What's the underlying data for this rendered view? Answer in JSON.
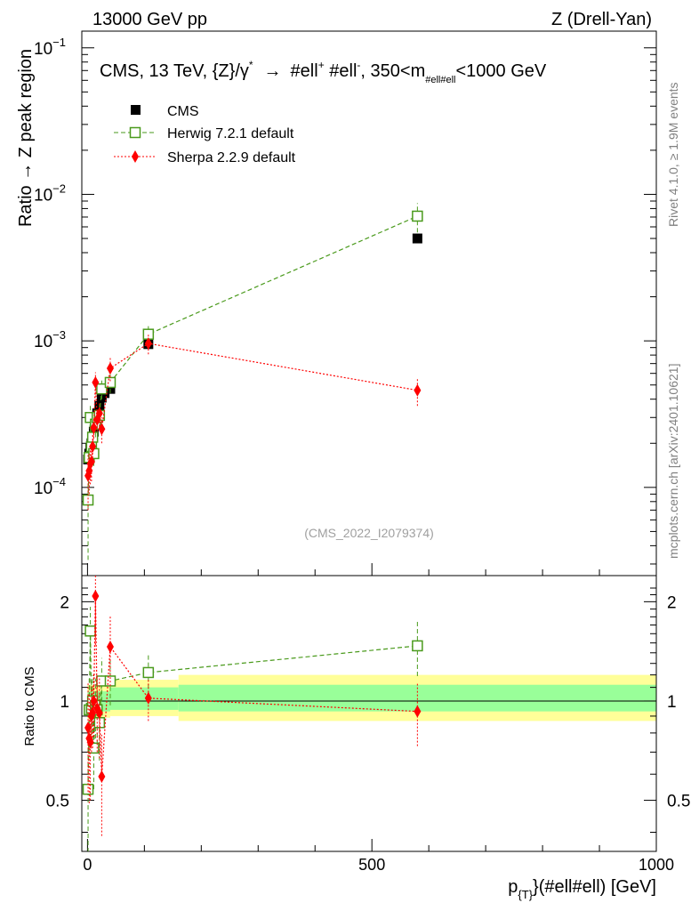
{
  "header": {
    "left": "13000 GeV pp",
    "right": "Z (Drell-Yan)"
  },
  "side_labels": {
    "rivet": "Rivet 4.1.0, ≥ 1.9M events",
    "site": "mcplots.cern.ch [arXiv:2401.10621]"
  },
  "chart_data": {
    "type": "scatter",
    "title": "CMS, 13 TeV, {Z}/γ* → #ell⁺ #ell⁻, 350<m_#ell#ell<1000 GeV",
    "title_parts": {
      "main": "CMS, 13 TeV, {Z}/γ",
      "star": "*",
      "arrow": "→",
      "mid": "#ell",
      "plus": "+",
      "mid2": " #ell",
      "minus": "-",
      "cut_left": ", 350<m",
      "cut_sub": "#ell#ell",
      "cut_right": "<1000 GeV"
    },
    "watermark": "(CMS_2022_I2079374)",
    "xlabel_main": "p",
    "xlabel_sub": "{T}",
    "xlabel_rest": "}(#ell#ell) [GeV]",
    "ylabel_top": "Ratio → Z peak region",
    "ylabel_bottom": "Ratio to CMS",
    "xlim": [
      -10,
      1000
    ],
    "ylim_top": [
      2.5e-05,
      0.13
    ],
    "ylim_bottom": [
      0.35,
      2.4
    ],
    "xticks": [
      0,
      500,
      1000
    ],
    "yticks_top": [
      {
        "value": 0.0001,
        "base": "10",
        "exp": "−4"
      },
      {
        "value": 0.001,
        "base": "10",
        "exp": "−3"
      },
      {
        "value": 0.01,
        "base": "10",
        "exp": "−2"
      },
      {
        "value": 0.1,
        "base": "10",
        "exp": "−1"
      }
    ],
    "yticks_bottom": [
      {
        "value": 0.5,
        "label": "0.5"
      },
      {
        "value": 1,
        "label": "1"
      },
      {
        "value": 2,
        "label": "2"
      }
    ],
    "band_inner_color": "#99ff99",
    "band_outer_color": "#ffff99",
    "bands": [
      {
        "x0": 0,
        "x1": 10,
        "inner": [
          0.93,
          1.07
        ],
        "outer": [
          0.88,
          1.12
        ]
      },
      {
        "x0": 10,
        "x1": 40,
        "inner": [
          0.93,
          1.07
        ],
        "outer": [
          0.89,
          1.11
        ]
      },
      {
        "x0": 40,
        "x1": 160,
        "inner": [
          0.94,
          1.1
        ],
        "outer": [
          0.9,
          1.16
        ]
      },
      {
        "x0": 160,
        "x1": 1000,
        "inner": [
          0.93,
          1.12
        ],
        "outer": [
          0.87,
          1.2
        ]
      }
    ],
    "series": [
      {
        "name": "CMS",
        "color": "#000000",
        "marker": "square-filled",
        "x": [
          1,
          3,
          5,
          7,
          9,
          11,
          14,
          17,
          21,
          25,
          30,
          40,
          107,
          580
        ],
        "y": [
          0.000155,
          0.00017,
          0.000185,
          0.0002,
          0.00022,
          0.00024,
          0.00028,
          0.00032,
          0.00036,
          0.00041,
          0.00044,
          0.00047,
          0.00095,
          0.005
        ]
      },
      {
        "name": "Herwig 7.2.1 default",
        "color": "#4a9a1c",
        "marker": "square-open",
        "line": "dashed",
        "x": [
          1,
          3,
          5,
          7,
          9,
          11,
          14,
          17,
          21,
          25,
          40,
          107,
          580
        ],
        "y": [
          8.2e-05,
          0.00016,
          0.0003,
          0.00019,
          0.00022,
          0.00017,
          0.00027,
          0.0003,
          0.00031,
          0.00047,
          0.00052,
          0.00111,
          0.0071
        ],
        "yerr": [
          5e-05,
          4e-05,
          6e-05,
          4e-05,
          4e-05,
          3e-05,
          5e-05,
          5e-05,
          6e-05,
          7e-05,
          8e-05,
          0.00017,
          0.0016
        ],
        "ratio": [
          0.54,
          0.94,
          1.63,
          0.95,
          1.0,
          0.72,
          0.97,
          0.94,
          0.86,
          1.15,
          1.15,
          1.22,
          1.47
        ],
        "ratio_err": [
          0.3,
          0.25,
          0.3,
          0.2,
          0.2,
          0.18,
          0.2,
          0.2,
          0.2,
          0.2,
          0.18,
          0.18,
          0.28
        ]
      },
      {
        "name": "Sherpa 2.2.9 default",
        "color": "#ff0000",
        "marker": "diamond-filled",
        "line": "dotted",
        "x": [
          1,
          3,
          5,
          7,
          9,
          11,
          14,
          17,
          21,
          25,
          40,
          107,
          580
        ],
        "y": [
          0.00012,
          0.00013,
          0.000145,
          0.00015,
          0.00019,
          0.000255,
          0.00052,
          0.00029,
          0.00032,
          0.00025,
          0.00065,
          0.00096,
          0.00046
        ],
        "yerr": [
          5e-05,
          4e-05,
          4e-05,
          4e-05,
          4e-05,
          4e-05,
          9e-05,
          5e-05,
          6e-05,
          5e-05,
          0.00012,
          0.00015,
          0.0001
        ],
        "ratio": [
          0.83,
          0.77,
          0.75,
          0.9,
          0.92,
          1.0,
          2.08,
          0.95,
          0.92,
          0.59,
          1.46,
          1.02,
          0.93
        ],
        "ratio_err": [
          0.3,
          0.28,
          0.25,
          0.2,
          0.2,
          0.22,
          0.6,
          0.25,
          0.25,
          0.2,
          0.35,
          0.15,
          0.2
        ]
      }
    ]
  }
}
